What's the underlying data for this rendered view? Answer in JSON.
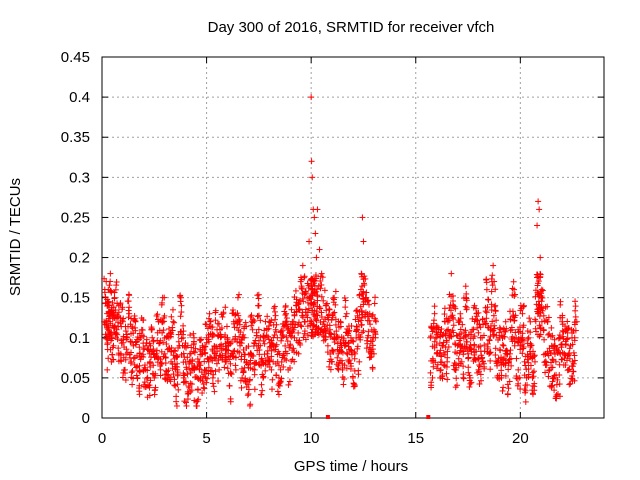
{
  "chart_data": {
    "type": "scatter",
    "title": "Day 300 of 2016, SRMTID for receiver vfch",
    "xlabel": "GPS time / hours",
    "ylabel": "SRMTID / TECUs",
    "xlim": [
      0,
      24
    ],
    "ylim": [
      0,
      0.45
    ],
    "xticks": [
      0,
      5,
      10,
      15,
      20
    ],
    "xtick_labels": [
      "0",
      "5",
      "10",
      "15",
      "20"
    ],
    "yticks": [
      0,
      0.05,
      0.1,
      0.15,
      0.2,
      0.25,
      0.3,
      0.35,
      0.4,
      0.45
    ],
    "ytick_labels": [
      "0",
      "0.05",
      "0.1",
      "0.15",
      "0.2",
      "0.25",
      "0.3",
      "0.35",
      "0.4",
      "0.45"
    ],
    "grid": true,
    "marker": "+",
    "color": "#ff0000",
    "segments": [
      {
        "x_start": 0.0,
        "x_end": 13.1,
        "note": "dense data"
      },
      {
        "x_start": 15.6,
        "x_end": 22.7,
        "note": "dense data"
      }
    ],
    "series": [
      {
        "name": "vfch",
        "points": [
          [
            0.1,
            0.12
          ],
          [
            0.2,
            0.17
          ],
          [
            0.25,
            0.06
          ],
          [
            0.3,
            0.16
          ],
          [
            0.35,
            0.1
          ],
          [
            0.4,
            0.18
          ],
          [
            0.45,
            0.07
          ],
          [
            0.5,
            0.13
          ],
          [
            0.55,
            0.09
          ],
          [
            0.6,
            0.15
          ],
          [
            0.7,
            0.11
          ],
          [
            0.8,
            0.14
          ],
          [
            0.9,
            0.08
          ],
          [
            1.0,
            0.12
          ],
          [
            1.1,
            0.06
          ],
          [
            1.2,
            0.1
          ],
          [
            1.3,
            0.13
          ],
          [
            1.4,
            0.07
          ],
          [
            1.5,
            0.09
          ],
          [
            1.6,
            0.12
          ],
          [
            1.7,
            0.05
          ],
          [
            1.8,
            0.08
          ],
          [
            1.9,
            0.11
          ],
          [
            2.0,
            0.06
          ],
          [
            2.1,
            0.09
          ],
          [
            2.2,
            0.04
          ],
          [
            2.3,
            0.07
          ],
          [
            2.4,
            0.1
          ],
          [
            2.5,
            0.05
          ],
          [
            2.6,
            0.08
          ],
          [
            2.7,
            0.12
          ],
          [
            2.8,
            0.06
          ],
          [
            2.9,
            0.15
          ],
          [
            3.0,
            0.08
          ],
          [
            3.1,
            0.05
          ],
          [
            3.2,
            0.1
          ],
          [
            3.3,
            0.07
          ],
          [
            3.4,
            0.12
          ],
          [
            3.5,
            0.04
          ],
          [
            3.6,
            0.06
          ],
          [
            3.7,
            0.09
          ],
          [
            3.8,
            0.14
          ],
          [
            3.9,
            0.05
          ],
          [
            4.0,
            0.07
          ],
          [
            4.1,
            0.03
          ],
          [
            4.2,
            0.08
          ],
          [
            4.3,
            0.06
          ],
          [
            4.4,
            0.1
          ],
          [
            4.5,
            0.02
          ],
          [
            4.6,
            0.07
          ],
          [
            4.7,
            0.05
          ],
          [
            4.8,
            0.09
          ],
          [
            4.9,
            0.06
          ],
          [
            5.0,
            0.1
          ],
          [
            5.1,
            0.07
          ],
          [
            5.2,
            0.12
          ],
          [
            5.3,
            0.05
          ],
          [
            5.4,
            0.08
          ],
          [
            5.5,
            0.11
          ],
          [
            5.6,
            0.06
          ],
          [
            5.7,
            0.09
          ],
          [
            5.8,
            0.13
          ],
          [
            5.9,
            0.07
          ],
          [
            6.0,
            0.1
          ],
          [
            6.1,
            0.04
          ],
          [
            6.2,
            0.08
          ],
          [
            6.3,
            0.12
          ],
          [
            6.4,
            0.06
          ],
          [
            6.5,
            0.15
          ],
          [
            6.6,
            0.09
          ],
          [
            6.7,
            0.05
          ],
          [
            6.8,
            0.1
          ],
          [
            6.9,
            0.07
          ],
          [
            7.0,
            0.03
          ],
          [
            7.1,
            0.08
          ],
          [
            7.2,
            0.11
          ],
          [
            7.3,
            0.06
          ],
          [
            7.4,
            0.09
          ],
          [
            7.5,
            0.14
          ],
          [
            7.6,
            0.07
          ],
          [
            7.7,
            0.05
          ],
          [
            7.8,
            0.1
          ],
          [
            7.9,
            0.08
          ],
          [
            8.0,
            0.12
          ],
          [
            8.1,
            0.06
          ],
          [
            8.2,
            0.09
          ],
          [
            8.3,
            0.11
          ],
          [
            8.4,
            0.07
          ],
          [
            8.5,
            0.04
          ],
          [
            8.6,
            0.1
          ],
          [
            8.7,
            0.08
          ],
          [
            8.8,
            0.13
          ],
          [
            8.9,
            0.06
          ],
          [
            9.0,
            0.09
          ],
          [
            9.1,
            0.12
          ],
          [
            9.2,
            0.1
          ],
          [
            9.3,
            0.14
          ],
          [
            9.4,
            0.08
          ],
          [
            9.5,
            0.17
          ],
          [
            9.6,
            0.19
          ],
          [
            9.7,
            0.12
          ],
          [
            9.8,
            0.15
          ],
          [
            9.9,
            0.22
          ],
          [
            10.0,
            0.4
          ],
          [
            10.02,
            0.32
          ],
          [
            10.05,
            0.3
          ],
          [
            10.1,
            0.26
          ],
          [
            10.15,
            0.25
          ],
          [
            10.2,
            0.23
          ],
          [
            10.25,
            0.2
          ],
          [
            10.3,
            0.26
          ],
          [
            10.4,
            0.21
          ],
          [
            10.5,
            0.18
          ],
          [
            10.6,
            0.12
          ],
          [
            10.7,
            0.14
          ],
          [
            10.8,
            0.09
          ],
          [
            10.9,
            0.11
          ],
          [
            11.0,
            0.07
          ],
          [
            11.1,
            0.15
          ],
          [
            11.2,
            0.1
          ],
          [
            11.3,
            0.08
          ],
          [
            11.4,
            0.12
          ],
          [
            11.5,
            0.06
          ],
          [
            11.6,
            0.09
          ],
          [
            11.7,
            0.13
          ],
          [
            11.8,
            0.07
          ],
          [
            11.9,
            0.1
          ],
          [
            12.0,
            0.05
          ],
          [
            12.1,
            0.08
          ],
          [
            12.2,
            0.11
          ],
          [
            12.3,
            0.07
          ],
          [
            12.4,
            0.18
          ],
          [
            12.45,
            0.25
          ],
          [
            12.5,
            0.22
          ],
          [
            12.6,
            0.15
          ],
          [
            12.7,
            0.1
          ],
          [
            12.8,
            0.13
          ],
          [
            12.9,
            0.08
          ],
          [
            13.0,
            0.11
          ],
          [
            13.1,
            0.12
          ],
          [
            15.7,
            0.1
          ],
          [
            15.8,
            0.05
          ],
          [
            15.9,
            0.13
          ],
          [
            16.0,
            0.08
          ],
          [
            16.1,
            0.11
          ],
          [
            16.2,
            0.06
          ],
          [
            16.3,
            0.09
          ],
          [
            16.4,
            0.12
          ],
          [
            16.5,
            0.07
          ],
          [
            16.6,
            0.1
          ],
          [
            16.7,
            0.18
          ],
          [
            16.8,
            0.14
          ],
          [
            16.9,
            0.06
          ],
          [
            17.0,
            0.09
          ],
          [
            17.1,
            0.12
          ],
          [
            17.2,
            0.07
          ],
          [
            17.3,
            0.1
          ],
          [
            17.4,
            0.15
          ],
          [
            17.5,
            0.08
          ],
          [
            17.6,
            0.05
          ],
          [
            17.7,
            0.11
          ],
          [
            17.8,
            0.09
          ],
          [
            17.9,
            0.13
          ],
          [
            18.0,
            0.06
          ],
          [
            18.1,
            0.1
          ],
          [
            18.2,
            0.07
          ],
          [
            18.3,
            0.12
          ],
          [
            18.4,
            0.16
          ],
          [
            18.5,
            0.08
          ],
          [
            18.6,
            0.11
          ],
          [
            18.7,
            0.19
          ],
          [
            18.8,
            0.14
          ],
          [
            18.9,
            0.07
          ],
          [
            19.0,
            0.1
          ],
          [
            19.1,
            0.05
          ],
          [
            19.2,
            0.09
          ],
          [
            19.3,
            0.12
          ],
          [
            19.4,
            0.03
          ],
          [
            19.5,
            0.08
          ],
          [
            19.6,
            0.11
          ],
          [
            19.7,
            0.16
          ],
          [
            19.8,
            0.1
          ],
          [
            19.9,
            0.06
          ],
          [
            20.0,
            0.09
          ],
          [
            20.1,
            0.13
          ],
          [
            20.2,
            0.07
          ],
          [
            20.3,
            0.05
          ],
          [
            20.4,
            0.1
          ],
          [
            20.5,
            0.08
          ],
          [
            20.6,
            0.04
          ],
          [
            20.7,
            0.07
          ],
          [
            20.8,
            0.24
          ],
          [
            20.85,
            0.27
          ],
          [
            20.9,
            0.26
          ],
          [
            20.95,
            0.2
          ],
          [
            21.0,
            0.15
          ],
          [
            21.1,
            0.11
          ],
          [
            21.2,
            0.08
          ],
          [
            21.3,
            0.12
          ],
          [
            21.4,
            0.06
          ],
          [
            21.5,
            0.09
          ],
          [
            21.6,
            0.05
          ],
          [
            21.7,
            0.07
          ],
          [
            21.8,
            0.03
          ],
          [
            21.9,
            0.1
          ],
          [
            22.0,
            0.12
          ],
          [
            22.1,
            0.08
          ],
          [
            22.2,
            0.11
          ],
          [
            22.3,
            0.06
          ],
          [
            22.4,
            0.09
          ],
          [
            22.5,
            0.07
          ],
          [
            22.6,
            0.1
          ],
          [
            22.7,
            0.12
          ]
        ]
      }
    ],
    "axis_markers_x": [
      10.8,
      15.6
    ]
  }
}
